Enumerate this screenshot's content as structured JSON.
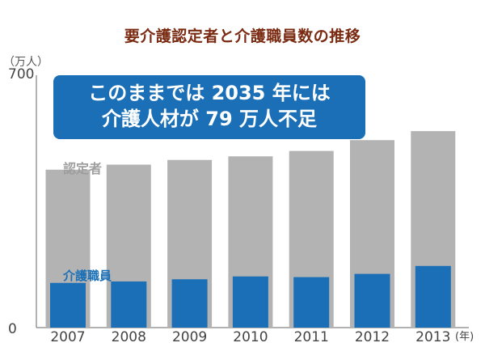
{
  "chart_data": {
    "type": "bar",
    "title": "要介護認定者と介護職員数の推移",
    "unit_label": "（万人）",
    "x_unit": "(年)",
    "categories": [
      "2007",
      "2008",
      "2009",
      "2010",
      "2011",
      "2012",
      "2013"
    ],
    "series": [
      {
        "name": "認定者",
        "values": [
          438,
          452,
          465,
          475,
          490,
          520,
          545
        ]
      },
      {
        "name": "介護職員",
        "values": [
          124,
          128,
          134,
          142,
          140,
          149,
          171
        ]
      }
    ],
    "ylim": [
      0,
      700
    ],
    "yticks": [
      0,
      700
    ],
    "annotation": [
      "このままでは 2035 年には",
      "介護人材が 79 万人不足"
    ],
    "colors": {
      "recipients": "#b3b3b3",
      "staff": "#1a6fb6",
      "label_gray": "#9e9e9e",
      "title": "#7a2b12"
    }
  }
}
